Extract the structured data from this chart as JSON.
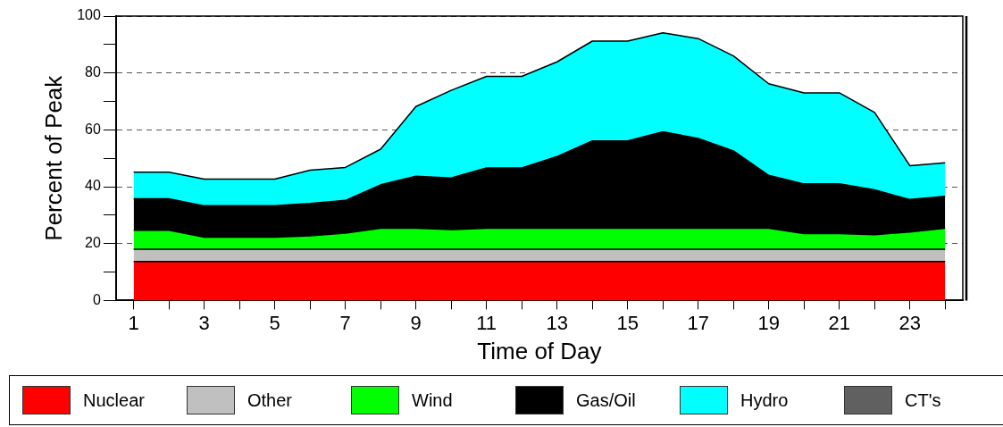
{
  "chart_data": {
    "type": "area",
    "stacked": true,
    "xlabel": "Time of Day",
    "ylabel": "Percent of Peak",
    "x": [
      1,
      2,
      3,
      4,
      5,
      6,
      7,
      8,
      9,
      10,
      11,
      12,
      13,
      14,
      15,
      16,
      17,
      18,
      19,
      20,
      21,
      22,
      23,
      24
    ],
    "series": [
      {
        "name": "Nuclear",
        "color": "#ff0000",
        "values": [
          13.7,
          13.7,
          13.7,
          13.7,
          13.7,
          13.7,
          13.7,
          13.7,
          13.7,
          13.7,
          13.7,
          13.7,
          13.7,
          13.7,
          13.7,
          13.7,
          13.7,
          13.7,
          13.7,
          13.7,
          13.7,
          13.7,
          13.7,
          13.7
        ]
      },
      {
        "name": "Other",
        "color": "#c0c0c0",
        "values": [
          4.3,
          4.3,
          4.3,
          4.3,
          4.3,
          4.3,
          4.3,
          4.3,
          4.3,
          4.3,
          4.3,
          4.3,
          4.3,
          4.3,
          4.3,
          4.3,
          4.3,
          4.3,
          4.3,
          4.3,
          4.3,
          4.3,
          4.3,
          4.3
        ]
      },
      {
        "name": "Wind",
        "color": "#00ff00",
        "values": [
          6.7,
          6.7,
          4.3,
          4.3,
          4.3,
          4.7,
          5.7,
          7.4,
          7.4,
          6.9,
          7.4,
          7.4,
          7.4,
          7.4,
          7.4,
          7.4,
          7.4,
          7.4,
          7.4,
          5.5,
          5.5,
          5.1,
          6.1,
          7.4
        ]
      },
      {
        "name": "Gas/Oil",
        "color": "#000000",
        "values": [
          11.1,
          11.1,
          11.0,
          11.0,
          11.0,
          11.4,
          11.5,
          15.3,
          18.3,
          18.2,
          21.2,
          21.2,
          25.2,
          30.7,
          30.7,
          33.9,
          31.6,
          27.2,
          18.6,
          17.5,
          17.5,
          15.8,
          11.4,
          11.2
        ]
      },
      {
        "name": "Hydro",
        "color": "#00ffff",
        "values": [
          9.3,
          9.3,
          9.4,
          9.4,
          9.4,
          11.7,
          11.6,
          12.5,
          24.5,
          30.8,
          32.2,
          32.2,
          33.3,
          35.1,
          35.1,
          34.8,
          35.1,
          33.4,
          32.2,
          32.0,
          32.0,
          27.2,
          11.9,
          11.8
        ]
      },
      {
        "name": "CT's",
        "color": "#606060",
        "values": [
          null,
          null,
          null,
          null,
          null,
          null,
          null,
          null,
          null,
          null,
          null,
          null,
          null,
          null,
          null,
          null,
          null,
          null,
          null,
          null,
          null,
          null,
          null,
          null
        ]
      }
    ],
    "xlim": [
      0.5,
      24.5
    ],
    "xticks": [
      1,
      {
        "value": 2,
        "label": null
      },
      3,
      {
        "value": 4,
        "label": null
      },
      5,
      {
        "value": 6,
        "label": null
      },
      7,
      {
        "value": 8,
        "label": null
      },
      9,
      {
        "value": 10,
        "label": null
      },
      11,
      {
        "value": 12,
        "label": null
      },
      13,
      {
        "value": 14,
        "label": null
      },
      15,
      {
        "value": 16,
        "label": null
      },
      17,
      {
        "value": 18,
        "label": null
      },
      19,
      {
        "value": 20,
        "label": null
      },
      21,
      {
        "value": 22,
        "label": null
      },
      23,
      {
        "value": 24,
        "label": null
      }
    ],
    "ylim": [
      0,
      100
    ],
    "yticks": [
      0,
      {
        "value": 10,
        "label": null
      },
      20,
      {
        "value": 30,
        "label": null
      },
      40,
      {
        "value": 50,
        "label": null
      },
      60,
      {
        "value": 70,
        "label": null
      },
      80,
      {
        "value": 90,
        "label": null
      },
      100
    ],
    "grid": "y",
    "line_style": "dashed",
    "legend": "bottom",
    "marker": "none"
  }
}
